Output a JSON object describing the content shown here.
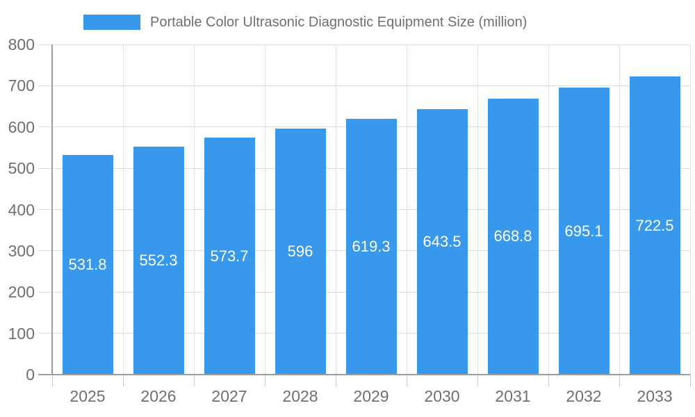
{
  "legend": {
    "label": "Portable Color Ultrasonic Diagnostic Equipment Size (million)"
  },
  "colors": {
    "bar": "#3898ec",
    "bar_label_text": "#ffffff",
    "axis_text": "#6f6f6f",
    "legend_text": "#6f6f6f",
    "grid_line": "#dedede",
    "vertical_grid_line": "#e4e4e4",
    "tick_line": "#cccccc",
    "axis_line": "#9c9c9c",
    "background": "#ffffff"
  },
  "chart_data": {
    "type": "bar",
    "title": "Portable Color Ultrasonic Diagnostic Equipment Size (million)",
    "categories": [
      "2025",
      "2026",
      "2027",
      "2028",
      "2029",
      "2030",
      "2031",
      "2032",
      "2033"
    ],
    "values": [
      531.8,
      552.3,
      573.7,
      596,
      619.3,
      643.5,
      668.8,
      695.1,
      722.5
    ],
    "value_labels": [
      "531.8",
      "552.3",
      "573.7",
      "596",
      "619.3",
      "643.5",
      "668.8",
      "695.1",
      "722.5"
    ],
    "xlabel": "",
    "ylabel": "",
    "ylim": [
      0,
      800
    ],
    "ytick_step": 100,
    "ytick_labels": [
      "0",
      "100",
      "200",
      "300",
      "400",
      "500",
      "600",
      "700",
      "800"
    ],
    "grid": true,
    "legend_position": "top-center",
    "value_label_position": "inside-center"
  }
}
